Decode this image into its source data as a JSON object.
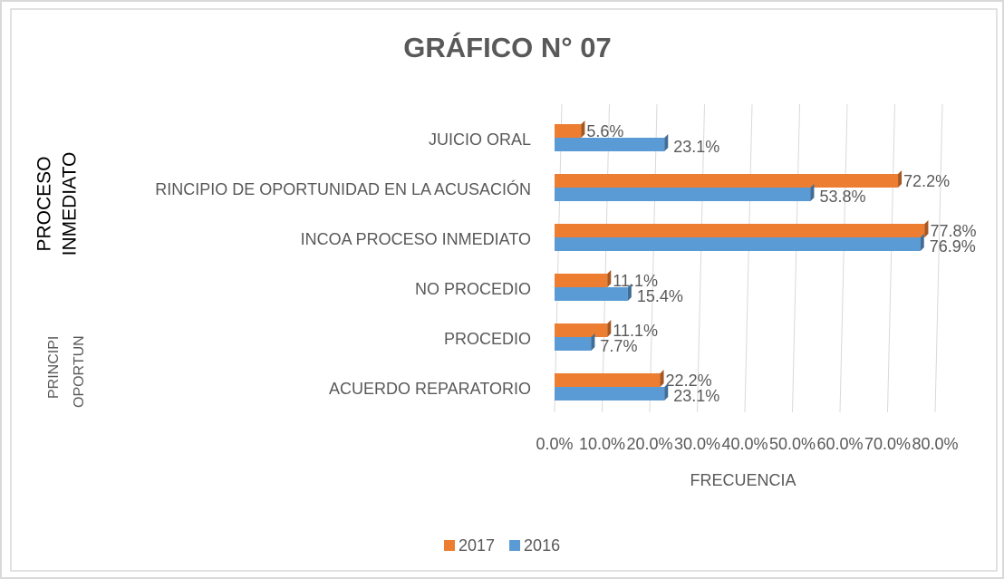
{
  "chart_data": {
    "type": "bar",
    "orientation": "horizontal",
    "title": "GRÁFICO N° 07",
    "x_label": "FRECUENCIA",
    "group_labels": [
      [
        "PROCESO",
        "INMEDIATO"
      ],
      [
        "PRINCIPI",
        "OPORTUN"
      ]
    ],
    "categories": [
      "JUICIO ORAL",
      "RINCIPIO DE OPORTUNIDAD EN LA ACUSACIÓN",
      "INCOA PROCESO INMEDIATO",
      "NO PROCEDIO",
      "PROCEDIO",
      "ACUERDO REPARATORIO"
    ],
    "series": [
      {
        "name": "2017",
        "color": "#ed7d31",
        "values": [
          5.6,
          72.2,
          77.8,
          11.1,
          11.1,
          22.2
        ],
        "value_labels": [
          "5.6%",
          "72.2%",
          "77.8%",
          "11.1%",
          "11.1%",
          "22.2%"
        ]
      },
      {
        "name": "2016",
        "color": "#5b9bd5",
        "values": [
          23.1,
          53.8,
          76.9,
          15.4,
          7.7,
          23.1
        ],
        "value_labels": [
          "23.1%",
          "53.8%",
          "76.9%",
          "15.4%",
          "7.7%",
          "23.1%"
        ]
      }
    ],
    "xlim": [
      0,
      80
    ],
    "xticks": [
      {
        "value": 0,
        "label": "0.0%"
      },
      {
        "value": 10,
        "label": "10.0%"
      },
      {
        "value": 20,
        "label": "20.0%"
      },
      {
        "value": 30,
        "label": "30.0%"
      },
      {
        "value": 40,
        "label": "40.0%"
      },
      {
        "value": 50,
        "label": "50.0%"
      },
      {
        "value": 60,
        "label": "60.0%"
      },
      {
        "value": 70,
        "label": "70.0%"
      },
      {
        "value": 80,
        "label": "80.0%"
      }
    ],
    "grid": true,
    "legend": "bottom"
  }
}
